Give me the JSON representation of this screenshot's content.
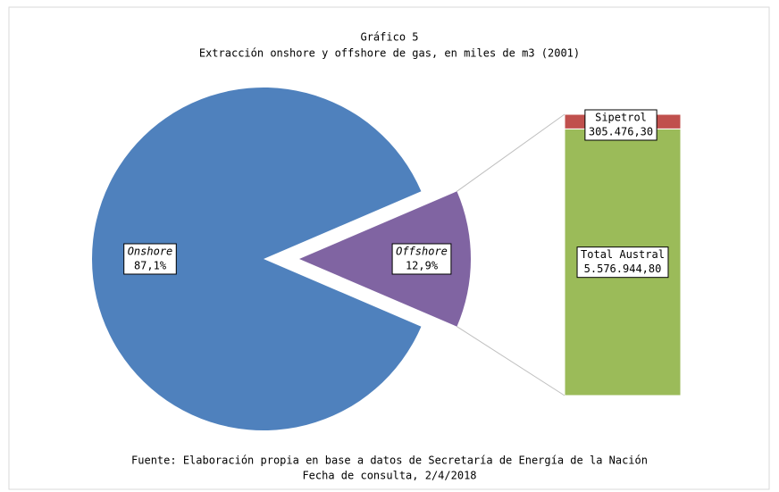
{
  "chart_data": {
    "type": "pie-of-bar",
    "title": "Gráfico 5",
    "subtitle": "Extracción onshore y offshore de gas, en miles de m3 (2001)",
    "categories": [
      "Onshore",
      "Offshore"
    ],
    "values": [
      87.1,
      12.9
    ],
    "value_labels": [
      "87,1%",
      "12,9%"
    ],
    "colors": [
      "#4f81bd",
      "#8064a2"
    ],
    "bar": {
      "categories": [
        "Total Austral",
        "Sipetrol"
      ],
      "values": [
        5576944.8,
        305476.3
      ],
      "value_labels": [
        "5.576.944,80",
        "305.476,30"
      ],
      "colors": [
        "#9bbb59",
        "#c0504d"
      ]
    },
    "source": "Fuente: Elaboración propia en base a datos de Secretaría de Energía de la Nación",
    "note": "Fecha de consulta, 2/4/2018"
  }
}
